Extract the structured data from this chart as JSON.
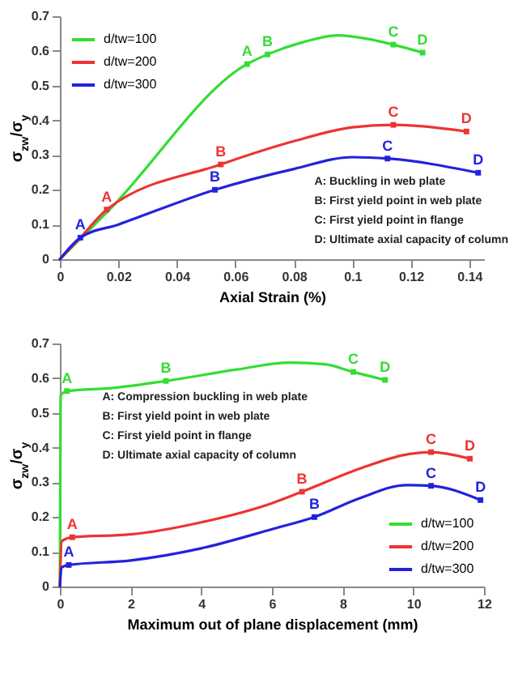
{
  "chart_data": [
    {
      "type": "line",
      "xlabel": "Axial Strain (%)",
      "ylabel": "σ$_{zw}$/σ$_{y}$",
      "xlim": [
        0,
        0.145
      ],
      "xticks": [
        0,
        0.02,
        0.04,
        0.06,
        0.08,
        0.1,
        0.12,
        0.14
      ],
      "ylim": [
        0,
        0.7
      ],
      "yticks": [
        0,
        0.1,
        0.2,
        0.3,
        0.4,
        0.5,
        0.6,
        0.7
      ],
      "grid": false,
      "legend": "top left",
      "annotations": [
        "A: Buckling in web plate",
        "B: First yield point in web plate",
        "C: First yield point in flange",
        "D: Ultimate axial capacity of column"
      ],
      "series": [
        {
          "type": "line",
          "name": "d/tw=100",
          "color": "#33dd33",
          "x": [
            0,
            0.017,
            0.064,
            0.071,
            0.083,
            0.095,
            0.105,
            0.114,
            0.124
          ],
          "values": [
            0,
            0.143,
            0.562,
            0.59,
            0.625,
            0.645,
            0.635,
            0.618,
            0.595
          ]
        },
        {
          "type": "line",
          "name": "d/tw=200",
          "color": "#ee3333",
          "x": [
            0,
            0.007,
            0.016,
            0.055,
            0.08,
            0.1,
            0.114,
            0.139
          ],
          "values": [
            0,
            0.062,
            0.143,
            0.273,
            0.34,
            0.38,
            0.387,
            0.368
          ]
        },
        {
          "type": "line",
          "name": "d/tw=300",
          "color": "#2222dd",
          "x": [
            0,
            0.007,
            0.02,
            0.053,
            0.08,
            0.1,
            0.112,
            0.143
          ],
          "values": [
            0,
            0.062,
            0.1,
            0.2,
            0.26,
            0.294,
            0.29,
            0.249
          ]
        },
        {
          "type": "scatter",
          "marker": "square",
          "color": "#33dd33",
          "x": [
            0.064,
            0.071,
            0.114,
            0.124
          ],
          "values": [
            0.562,
            0.59,
            0.618,
            0.595
          ],
          "value_labels": [
            "A",
            "B",
            "C",
            "D"
          ]
        },
        {
          "type": "scatter",
          "marker": "square",
          "color": "#ee3333",
          "x": [
            0.016,
            0.055,
            0.114,
            0.139
          ],
          "values": [
            0.143,
            0.273,
            0.387,
            0.368
          ],
          "value_labels": [
            "A",
            "B",
            "C",
            "D"
          ]
        },
        {
          "type": "scatter",
          "marker": "square",
          "color": "#2222dd",
          "x": [
            0.007,
            0.053,
            0.112,
            0.143
          ],
          "values": [
            0.062,
            0.2,
            0.29,
            0.249
          ],
          "value_labels": [
            "A",
            "B",
            "C",
            "D"
          ]
        }
      ]
    },
    {
      "type": "line",
      "xlabel": "Maximum out of plane displacement (mm)",
      "ylabel": "σ$_{zw}$/σ$_{y}$",
      "xlim": [
        0,
        12
      ],
      "xticks": [
        0,
        2,
        4,
        6,
        8,
        10,
        12
      ],
      "ylim": [
        0,
        0.7
      ],
      "yticks": [
        0,
        0.1,
        0.2,
        0.3,
        0.4,
        0.5,
        0.6,
        0.7
      ],
      "grid": false,
      "legend": "bottom right",
      "annotations": [
        "A: Compression buckling in web plate",
        "B: First yield point in web plate",
        "C: First yield point in flange",
        "D: Ultimate axial capacity of column"
      ],
      "series": [
        {
          "type": "line",
          "name": "d/tw=100",
          "color": "#33dd33",
          "x": [
            0,
            0.02,
            0.2,
            1.5,
            3,
            5,
            6.5,
            7.5,
            8.3,
            9.2
          ],
          "values": [
            0,
            0.55,
            0.563,
            0.572,
            0.592,
            0.625,
            0.645,
            0.64,
            0.618,
            0.595
          ]
        },
        {
          "type": "line",
          "name": "d/tw=200",
          "color": "#ee3333",
          "x": [
            0,
            0.05,
            0.35,
            2,
            4,
            6,
            6.85,
            8.5,
            9.8,
            10.5,
            11.6
          ],
          "values": [
            0,
            0.13,
            0.142,
            0.15,
            0.185,
            0.24,
            0.273,
            0.34,
            0.38,
            0.387,
            0.368
          ]
        },
        {
          "type": "line",
          "name": "d/tw=300",
          "color": "#2222dd",
          "x": [
            0,
            0.05,
            0.25,
            2,
            4,
            6,
            7.2,
            8.5,
            9.8,
            10.5,
            11.9
          ],
          "values": [
            0,
            0.055,
            0.062,
            0.075,
            0.11,
            0.165,
            0.2,
            0.255,
            0.292,
            0.29,
            0.249
          ]
        },
        {
          "type": "scatter",
          "marker": "square",
          "color": "#33dd33",
          "x": [
            0.2,
            3,
            8.3,
            9.2
          ],
          "values": [
            0.563,
            0.592,
            0.618,
            0.595
          ],
          "value_labels": [
            "A",
            "B",
            "C",
            "D"
          ]
        },
        {
          "type": "scatter",
          "marker": "square",
          "color": "#ee3333",
          "x": [
            0.35,
            6.85,
            10.5,
            11.6
          ],
          "values": [
            0.142,
            0.273,
            0.387,
            0.368
          ],
          "value_labels": [
            "A",
            "B",
            "C",
            "D"
          ]
        },
        {
          "type": "scatter",
          "marker": "square",
          "color": "#2222dd",
          "x": [
            0.25,
            7.2,
            10.5,
            11.9
          ],
          "values": [
            0.062,
            0.2,
            0.29,
            0.249
          ],
          "value_labels": [
            "A",
            "B",
            "C",
            "D"
          ]
        }
      ]
    }
  ]
}
